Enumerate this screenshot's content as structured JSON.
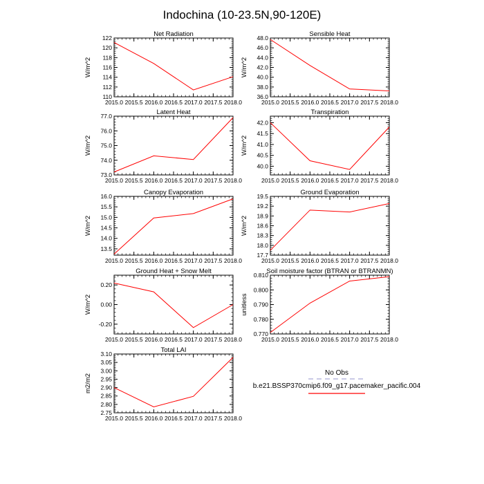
{
  "title": "Indochina (10-23.5N,90-120E)",
  "legend": {
    "obs_label": "No Obs",
    "obs_color": "#a9a9d8",
    "model_label": "b.e21.BSSP370cmip6.f09_g17.pacemaker_pacific.004",
    "model_color": "#ff0000"
  },
  "chart_data": [
    {
      "type": "line",
      "title": "Net Radiation",
      "ylabel": "W/m^2",
      "x": [
        2015,
        2016,
        2017,
        2018
      ],
      "series": [
        {
          "name": "b.e21.BSSP370cmip6.f09_g17.pacemaker_pacific.004",
          "values": [
            121.1,
            116.8,
            111.4,
            114.1
          ]
        }
      ],
      "xlim": [
        2015,
        2018
      ],
      "ylim": [
        110,
        122
      ],
      "xticks": [
        "2015.0",
        "2015.5",
        "2016.0",
        "2016.5",
        "2017.0",
        "2017.5",
        "2018.0"
      ],
      "yticks": [
        "110",
        "112",
        "114",
        "116",
        "118",
        "120",
        "122"
      ]
    },
    {
      "type": "line",
      "title": "Sensible Heat",
      "ylabel": "W/m^2",
      "x": [
        2015,
        2016,
        2017,
        2018
      ],
      "series": [
        {
          "name": "b.e21.BSSP370cmip6.f09_g17.pacemaker_pacific.004",
          "values": [
            47.7,
            42.4,
            37.6,
            37.2
          ]
        }
      ],
      "xlim": [
        2015,
        2018
      ],
      "ylim": [
        36,
        48
      ],
      "xticks": [
        "2015.0",
        "2015.5",
        "2016.0",
        "2016.5",
        "2017.0",
        "2017.5",
        "2018.0"
      ],
      "yticks": [
        "36.0",
        "38.0",
        "40.0",
        "42.0",
        "44.0",
        "46.0",
        "48.0"
      ]
    },
    {
      "type": "line",
      "title": "Latent Heat",
      "ylabel": "W/m^2",
      "x": [
        2015,
        2016,
        2017,
        2018
      ],
      "series": [
        {
          "name": "b.e21.BSSP370cmip6.f09_g17.pacemaker_pacific.004",
          "values": [
            73.2,
            74.3,
            74.05,
            76.9
          ]
        }
      ],
      "xlim": [
        2015,
        2018
      ],
      "ylim": [
        73,
        77
      ],
      "xticks": [
        "2015.0",
        "2015.5",
        "2016.0",
        "2016.5",
        "2017.0",
        "2017.5",
        "2018.0"
      ],
      "yticks": [
        "73.0",
        "74.0",
        "75.0",
        "76.0",
        "77.0"
      ]
    },
    {
      "type": "line",
      "title": "Transpiration",
      "ylabel": "W/m^2",
      "x": [
        2015,
        2016,
        2017,
        2018
      ],
      "series": [
        {
          "name": "b.e21.BSSP370cmip6.f09_g17.pacemaker_pacific.004",
          "values": [
            42.0,
            40.25,
            39.85,
            41.8
          ]
        }
      ],
      "xlim": [
        2015,
        2018
      ],
      "ylim": [
        39.6,
        42.3
      ],
      "xticks": [
        "2015.0",
        "2015.5",
        "2016.0",
        "2016.5",
        "2017.0",
        "2017.5",
        "2018.0"
      ],
      "yticks": [
        "40.0",
        "40.5",
        "41.0",
        "41.5",
        "42.0"
      ]
    },
    {
      "type": "line",
      "title": "Canopy Evaporation",
      "ylabel": "W/m^2",
      "x": [
        2015,
        2016,
        2017,
        2018
      ],
      "series": [
        {
          "name": "b.e21.BSSP370cmip6.f09_g17.pacemaker_pacific.004",
          "values": [
            13.25,
            14.97,
            15.18,
            15.88
          ]
        }
      ],
      "xlim": [
        2015,
        2018
      ],
      "ylim": [
        13.2,
        16.0
      ],
      "xticks": [
        "2015.0",
        "2015.5",
        "2016.0",
        "2016.5",
        "2017.0",
        "2017.5",
        "2018.0"
      ],
      "yticks": [
        "13.5",
        "14.0",
        "14.5",
        "15.0",
        "15.5",
        "16.0"
      ]
    },
    {
      "type": "line",
      "title": "Ground Evaporation",
      "ylabel": "W/m^2",
      "x": [
        2015,
        2016,
        2017,
        2018
      ],
      "series": [
        {
          "name": "b.e21.BSSP370cmip6.f09_g17.pacemaker_pacific.004",
          "values": [
            17.85,
            19.08,
            19.02,
            19.28
          ]
        }
      ],
      "xlim": [
        2015,
        2018
      ],
      "ylim": [
        17.7,
        19.5
      ],
      "xticks": [
        "2015.0",
        "2015.5",
        "2016.0",
        "2016.5",
        "2017.0",
        "2017.5",
        "2018.0"
      ],
      "yticks": [
        "17.7",
        "18.0",
        "18.3",
        "18.6",
        "18.9",
        "19.2",
        "19.5"
      ]
    },
    {
      "type": "line",
      "title": "Ground Heat + Snow Melt",
      "ylabel": "W/m^2",
      "x": [
        2015,
        2016,
        2017,
        2018
      ],
      "series": [
        {
          "name": "b.e21.BSSP370cmip6.f09_g17.pacemaker_pacific.004",
          "values": [
            0.22,
            0.13,
            -0.235,
            0.0
          ]
        }
      ],
      "xlim": [
        2015,
        2018
      ],
      "ylim": [
        -0.3,
        0.3
      ],
      "xticks": [
        "2015.0",
        "2015.5",
        "2016.0",
        "2016.5",
        "2017.0",
        "2017.5",
        "2018.0"
      ],
      "yticks": [
        "-0.20",
        "0.00",
        "0.20"
      ]
    },
    {
      "type": "line",
      "title": "Soil moisture factor (BTRAN or BTRANMN)",
      "ylabel": "unitless",
      "x": [
        2015,
        2016,
        2017,
        2018
      ],
      "series": [
        {
          "name": "b.e21.BSSP370cmip6.f09_g17.pacemaker_pacific.004",
          "values": [
            0.771,
            0.791,
            0.806,
            0.809
          ]
        }
      ],
      "xlim": [
        2015,
        2018
      ],
      "ylim": [
        0.77,
        0.81
      ],
      "xticks": [
        "2015.0",
        "2015.5",
        "2016.0",
        "2016.5",
        "2017.0",
        "2017.5",
        "2018.0"
      ],
      "yticks": [
        "0.770",
        "0.780",
        "0.790",
        "0.800",
        "0.810"
      ]
    },
    {
      "type": "line",
      "title": "Total LAI",
      "ylabel": "m2/m2",
      "x": [
        2015,
        2016,
        2017,
        2018
      ],
      "series": [
        {
          "name": "b.e21.BSSP370cmip6.f09_g17.pacemaker_pacific.004",
          "values": [
            2.9,
            2.785,
            2.848,
            3.08
          ]
        }
      ],
      "xlim": [
        2015,
        2018
      ],
      "ylim": [
        2.75,
        3.1
      ],
      "xticks": [
        "2015.0",
        "2015.5",
        "2016.0",
        "2016.5",
        "2017.0",
        "2017.5",
        "2018.0"
      ],
      "yticks": [
        "2.75",
        "2.80",
        "2.85",
        "2.90",
        "2.95",
        "3.00",
        "3.05",
        "3.10"
      ]
    }
  ]
}
